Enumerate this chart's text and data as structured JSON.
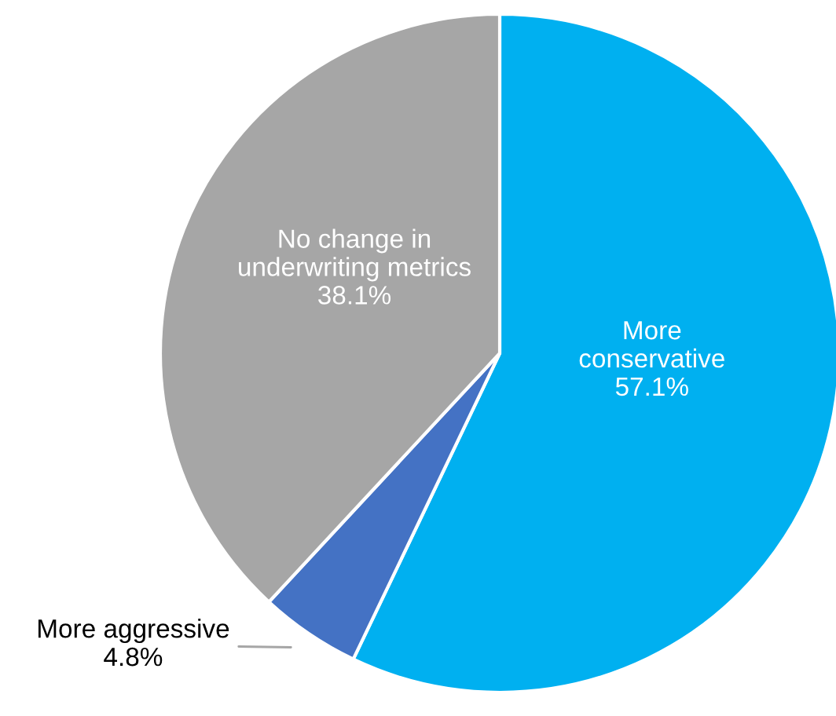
{
  "chart_data": {
    "type": "pie",
    "categories": [
      "More\nconservative",
      "More aggressive",
      "No change in\nunderwriting metrics"
    ],
    "values": [
      57.1,
      4.8,
      38.1
    ],
    "value_labels": [
      "57.1%",
      "4.8%",
      "38.1%"
    ],
    "colors": [
      "#00b0f0",
      "#4472c4",
      "#a6a6a6"
    ],
    "legend": false
  }
}
